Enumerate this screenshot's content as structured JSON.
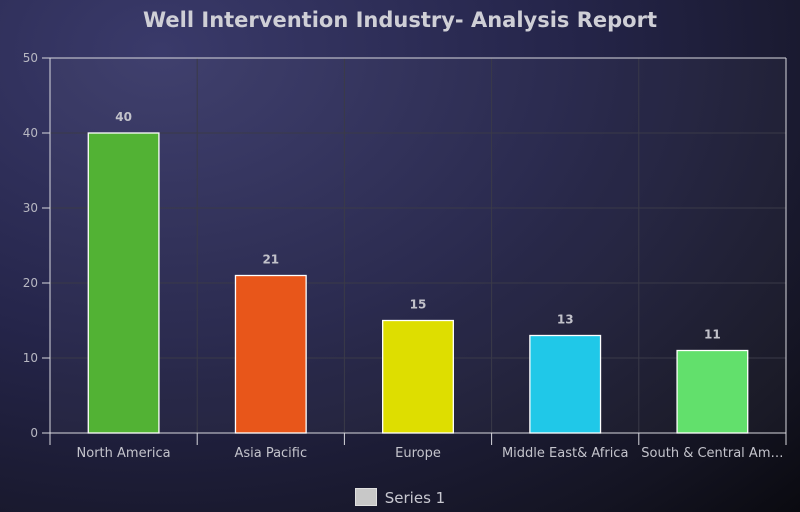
{
  "chart_data": {
    "type": "bar",
    "title": "Well Intervention Industry- Analysis Report",
    "categories": [
      "North America",
      "Asia Pacific",
      "Europe",
      "Middle East& Africa",
      "South & Central Am…"
    ],
    "series": [
      {
        "name": "Series 1",
        "values": [
          40,
          21,
          15,
          13,
          11
        ],
        "colors": [
          "#52b234",
          "#e8561a",
          "#dede00",
          "#20c8e8",
          "#62e06c"
        ]
      }
    ],
    "data_labels": [
      "40",
      "21",
      "15",
      "13",
      "11"
    ],
    "yticks": [
      0,
      10,
      20,
      30,
      40,
      50
    ],
    "ylim": [
      0,
      50
    ],
    "grid": true,
    "legend_position": "bottom-center",
    "xlabel": "",
    "ylabel": ""
  },
  "legend": {
    "label": "Series 1",
    "swatch_color": "#c8c8c8"
  },
  "colors": {
    "axis": "#d8d8de",
    "grid": "#3a3a48",
    "bar_border": "#ffffff"
  }
}
